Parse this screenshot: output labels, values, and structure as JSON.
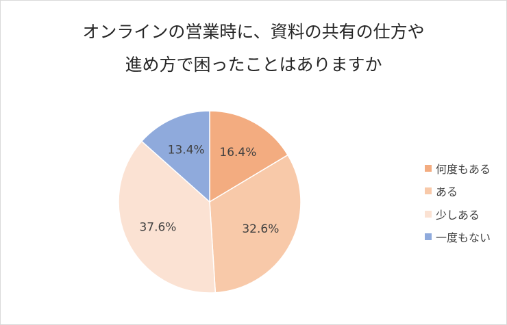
{
  "chart_data": {
    "type": "pie",
    "title_lines": [
      "オンラインの営業時に、資料の共有の仕方や",
      "進め方で困ったことはありますか"
    ],
    "categories": [
      "何度もある",
      "ある",
      "少しある",
      "一度もない"
    ],
    "values": [
      16.4,
      32.6,
      37.6,
      13.4
    ],
    "labels": [
      "16.4%",
      "32.6%",
      "37.6%",
      "13.4%"
    ],
    "colors": [
      "#f3ac80",
      "#f8c9a9",
      "#fbe2d3",
      "#8faadc"
    ],
    "legend_position": "right"
  }
}
